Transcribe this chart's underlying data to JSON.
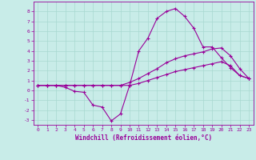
{
  "xlabel": "Windchill (Refroidissement éolien,°C)",
  "background_color": "#c8ece8",
  "grid_color": "#a8d8d0",
  "line_color": "#990099",
  "xlim": [
    -0.5,
    23.5
  ],
  "ylim": [
    -3.5,
    9.0
  ],
  "xticks": [
    0,
    1,
    2,
    3,
    4,
    5,
    6,
    7,
    8,
    9,
    10,
    11,
    12,
    13,
    14,
    15,
    16,
    17,
    18,
    19,
    20,
    21,
    22,
    23
  ],
  "yticks": [
    -3,
    -2,
    -1,
    0,
    1,
    2,
    3,
    4,
    5,
    6,
    7,
    8
  ],
  "series1_x": [
    0,
    1,
    2,
    3,
    4,
    5,
    6,
    7,
    8,
    9,
    10,
    11,
    12,
    13,
    14,
    15,
    16,
    17,
    18,
    19,
    20,
    21,
    22,
    23
  ],
  "series1_y": [
    0.5,
    0.5,
    0.5,
    0.3,
    -0.1,
    -0.2,
    -1.5,
    -1.7,
    -3.1,
    -2.4,
    0.5,
    4.0,
    5.3,
    7.3,
    8.0,
    8.3,
    7.5,
    6.3,
    4.4,
    4.4,
    3.3,
    2.3,
    1.5,
    1.2
  ],
  "series2_x": [
    0,
    1,
    2,
    3,
    4,
    5,
    6,
    7,
    8,
    9,
    10,
    11,
    12,
    13,
    14,
    15,
    16,
    17,
    18,
    19,
    20,
    21,
    22,
    23
  ],
  "series2_y": [
    0.5,
    0.5,
    0.5,
    0.5,
    0.5,
    0.5,
    0.5,
    0.5,
    0.5,
    0.5,
    0.8,
    1.2,
    1.7,
    2.2,
    2.8,
    3.2,
    3.5,
    3.7,
    3.9,
    4.2,
    4.3,
    3.5,
    2.2,
    1.2
  ],
  "series3_x": [
    0,
    1,
    2,
    3,
    4,
    5,
    6,
    7,
    8,
    9,
    10,
    11,
    12,
    13,
    14,
    15,
    16,
    17,
    18,
    19,
    20,
    21,
    22,
    23
  ],
  "series3_y": [
    0.5,
    0.5,
    0.5,
    0.5,
    0.5,
    0.5,
    0.5,
    0.5,
    0.5,
    0.5,
    0.5,
    0.7,
    1.0,
    1.3,
    1.6,
    1.9,
    2.1,
    2.3,
    2.5,
    2.7,
    2.9,
    2.5,
    1.5,
    1.2
  ]
}
